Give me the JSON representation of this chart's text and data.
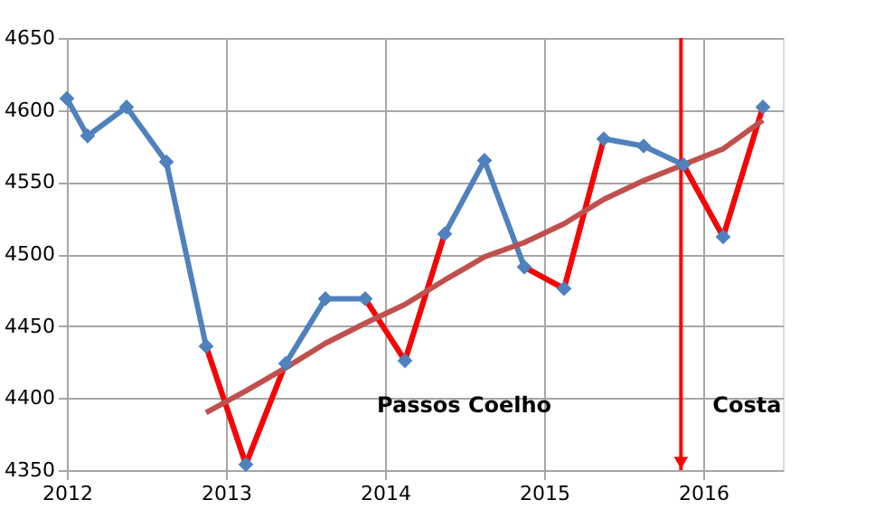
{
  "chart_data": {
    "type": "line",
    "x": [
      2012.0,
      2012.13,
      2012.375,
      2012.625,
      2012.875,
      2013.125,
      2013.375,
      2013.625,
      2013.875,
      2014.125,
      2014.375,
      2014.625,
      2014.875,
      2015.125,
      2015.375,
      2015.625,
      2015.875,
      2016.125,
      2016.375
    ],
    "series": [
      {
        "color": "#4f81bd",
        "marker": "diamond",
        "values": [
          4608,
          4582,
          4602,
          4564,
          4436,
          4354,
          4424,
          4469,
          4469,
          4426,
          4514,
          4565,
          4491,
          4476,
          4580,
          4575,
          4562,
          4512,
          4602
        ]
      },
      {
        "color": "#ff0000",
        "marker": "none",
        "values": [
          null,
          null,
          null,
          null,
          4436,
          4354,
          4424,
          null,
          4469,
          4426,
          4514,
          null,
          4491,
          4476,
          4580,
          null,
          4562,
          4512,
          4602
        ]
      },
      {
        "color": "#c0504d",
        "marker": "none",
        "x": [
          2012.875,
          2013.125,
          2013.375,
          2013.625,
          2013.875,
          2014.125,
          2014.375,
          2014.625,
          2014.875,
          2015.125,
          2015.375,
          2015.625,
          2015.875,
          2016.125,
          2016.375
        ],
        "values": [
          4390,
          4405,
          4421,
          4438,
          4452,
          4465,
          4482,
          4498,
          4508,
          4521,
          4538,
          4551,
          4562,
          4573,
          4593
        ]
      }
    ],
    "xlim": [
      2012,
      2016.5
    ],
    "xticks": [
      2012,
      2013,
      2014,
      2015,
      2016
    ],
    "ylim": [
      4350,
      4650
    ],
    "yticks": [
      4350,
      4400,
      4450,
      4500,
      4550,
      4600,
      4650
    ],
    "grid": true,
    "ref_lines": [
      {
        "axis": "x",
        "value": 2015.86,
        "color": "#ff0000"
      }
    ],
    "annotations": [
      "Passos Coelho",
      "Costa"
    ]
  }
}
